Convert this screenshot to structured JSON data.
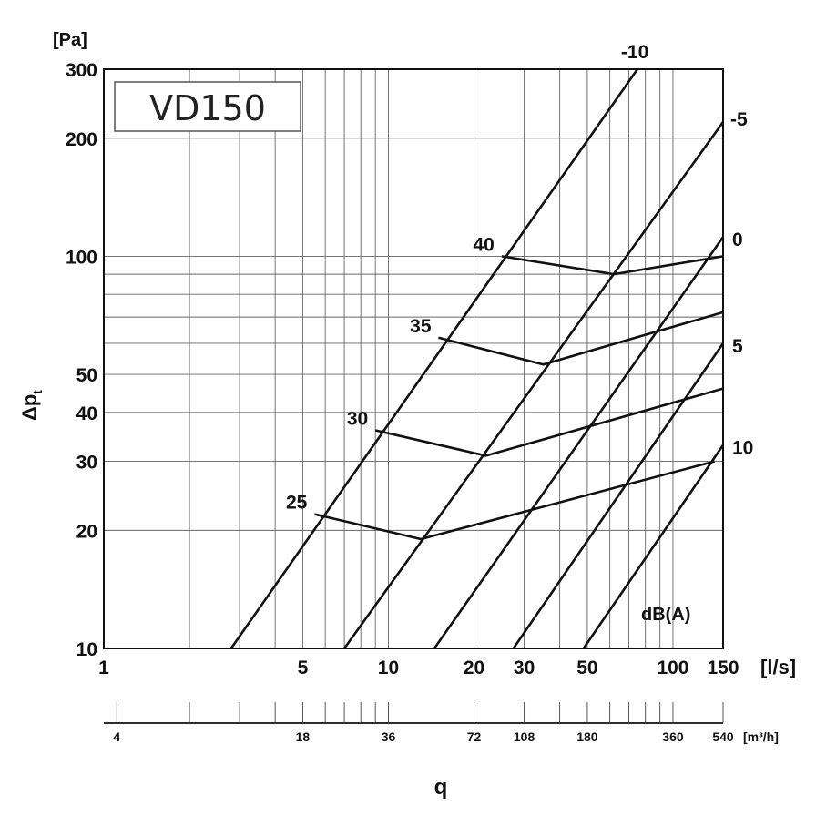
{
  "chart_data": {
    "type": "line",
    "title": "VD150",
    "ylabel_unit": "[Pa]",
    "ylabel_main": "Δp",
    "ylabel_sub": "t",
    "xlabel": "q",
    "x_unit": "[l/s]",
    "x2_unit": "[m³/h]",
    "y_scale": "log",
    "x_scale": "log",
    "xlim": [
      1,
      150
    ],
    "ylim": [
      10,
      300
    ],
    "grid": true,
    "x_ticks": [
      {
        "v": 1,
        "label": "1"
      },
      {
        "v": 5,
        "label": "5"
      },
      {
        "v": 10,
        "label": "10"
      },
      {
        "v": 20,
        "label": "20"
      },
      {
        "v": 30,
        "label": "30"
      },
      {
        "v": 50,
        "label": "50"
      },
      {
        "v": 100,
        "label": "100"
      },
      {
        "v": 150,
        "label": "150"
      }
    ],
    "x_grid": [
      1,
      2,
      3,
      4,
      5,
      6,
      7,
      8,
      9,
      10,
      20,
      30,
      40,
      50,
      60,
      70,
      80,
      90,
      100,
      150
    ],
    "y_ticks": [
      {
        "v": 10,
        "label": "10"
      },
      {
        "v": 20,
        "label": "20"
      },
      {
        "v": 30,
        "label": "30"
      },
      {
        "v": 40,
        "label": "40"
      },
      {
        "v": 50,
        "label": "50"
      },
      {
        "v": 100,
        "label": "100"
      },
      {
        "v": 200,
        "label": "200"
      },
      {
        "v": 300,
        "label": "300"
      }
    ],
    "y_grid": [
      10,
      20,
      30,
      40,
      50,
      60,
      70,
      80,
      90,
      100,
      200,
      300
    ],
    "x2_ticks": [
      {
        "v": 4,
        "label": "4"
      },
      {
        "v": 18,
        "label": "18"
      },
      {
        "v": 36,
        "label": "36"
      },
      {
        "v": 72,
        "label": "72"
      },
      {
        "v": 108,
        "label": "108"
      },
      {
        "v": 180,
        "label": "180"
      },
      {
        "v": 360,
        "label": "360"
      },
      {
        "v": 540,
        "label": "540"
      }
    ],
    "x2_minor": [
      4,
      7.2,
      10.8,
      14.4,
      18,
      21.6,
      25.2,
      28.8,
      32.4,
      36,
      72,
      108,
      144,
      180,
      216,
      252,
      288,
      324,
      360,
      540
    ],
    "damper_series": [
      {
        "name": "-10",
        "points": [
          [
            2.8,
            10
          ],
          [
            75,
            300
          ]
        ]
      },
      {
        "name": "-5",
        "points": [
          [
            7,
            10
          ],
          [
            150,
            220
          ]
        ]
      },
      {
        "name": "0",
        "points": [
          [
            14.5,
            10
          ],
          [
            150,
            112
          ]
        ]
      },
      {
        "name": "5",
        "points": [
          [
            27.5,
            10
          ],
          [
            150,
            60
          ]
        ]
      },
      {
        "name": "10",
        "points": [
          [
            48.5,
            10
          ],
          [
            150,
            33
          ]
        ]
      }
    ],
    "noise_unit": "dB(A)",
    "noise_series": [
      {
        "name": "25",
        "points": [
          [
            5.5,
            22
          ],
          [
            13,
            19
          ],
          [
            140,
            30
          ]
        ]
      },
      {
        "name": "30",
        "points": [
          [
            9,
            36
          ],
          [
            22,
            31
          ],
          [
            150,
            46
          ]
        ]
      },
      {
        "name": "35",
        "points": [
          [
            15,
            62
          ],
          [
            35,
            53
          ],
          [
            150,
            72
          ]
        ]
      },
      {
        "name": "40",
        "points": [
          [
            25,
            100
          ],
          [
            62,
            90
          ],
          [
            150,
            100
          ]
        ]
      }
    ]
  }
}
